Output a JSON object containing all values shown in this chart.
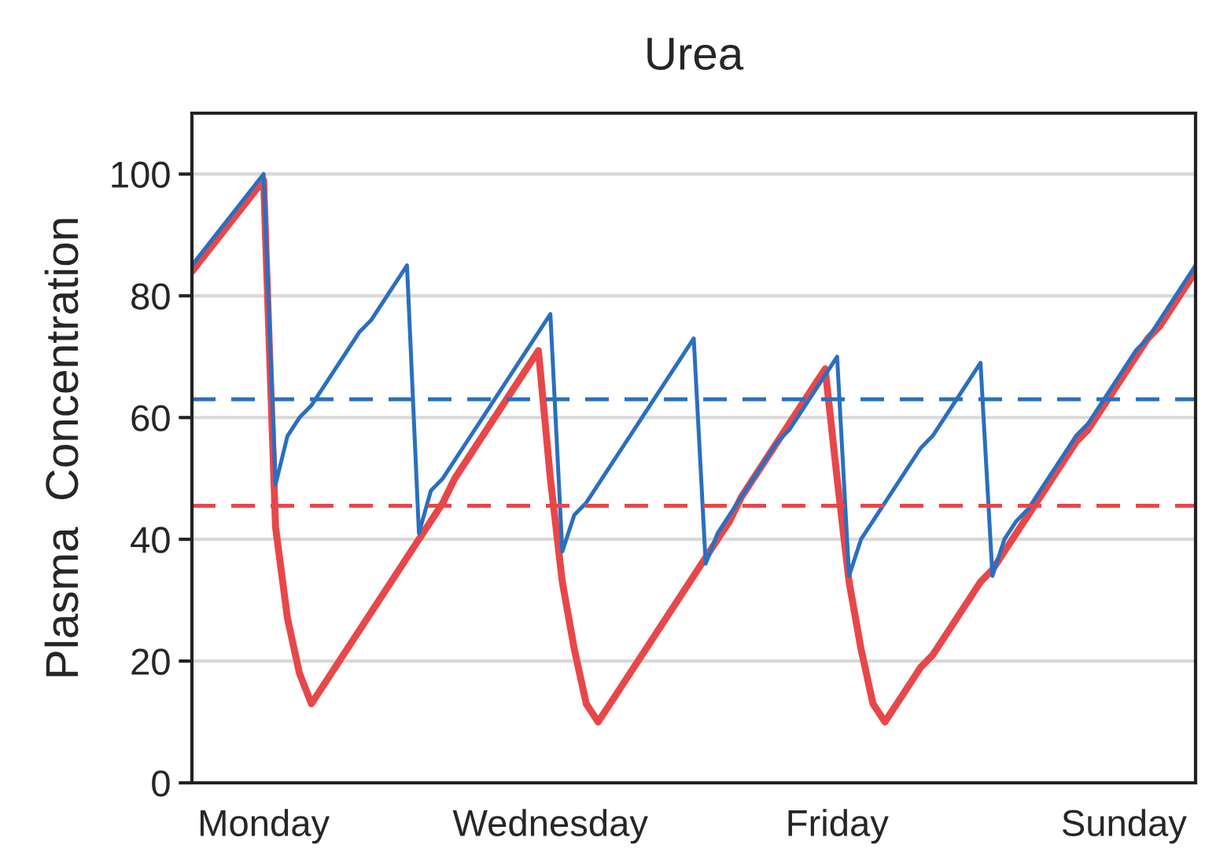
{
  "chart_data": {
    "type": "line",
    "title": "Urea",
    "ylabel": "Plasma  Concentration",
    "categories": [
      null,
      null,
      null,
      null,
      null,
      null,
      "Monday",
      null,
      null,
      null,
      null,
      null,
      null,
      null,
      null,
      null,
      null,
      null,
      null,
      null,
      null,
      null,
      null,
      null,
      null,
      null,
      null,
      null,
      null,
      null,
      "Wednesday",
      null,
      null,
      null,
      null,
      null,
      null,
      null,
      null,
      null,
      null,
      null,
      null,
      null,
      null,
      null,
      null,
      null,
      null,
      null,
      null,
      null,
      null,
      null,
      "Friday",
      null,
      null,
      null,
      null,
      null,
      null,
      null,
      null,
      null,
      null,
      null,
      null,
      null,
      null,
      null,
      null,
      null,
      null,
      null,
      null,
      null,
      null,
      null,
      "Sunday",
      null,
      null,
      null,
      null,
      null,
      null
    ],
    "ylim": [
      0,
      110
    ],
    "yticks": [
      0,
      20,
      40,
      60,
      80,
      100
    ],
    "grid": "y",
    "marker": "none",
    "line_style": "solid",
    "legend": false,
    "series": [
      {
        "color": "#e8474a",
        "values": [
          84,
          86.5,
          89,
          91.5,
          94,
          96.5,
          99,
          42,
          27,
          18,
          13,
          16,
          19,
          22,
          25,
          28,
          31,
          34,
          37,
          40,
          43,
          46,
          50,
          53,
          56,
          59,
          62,
          65,
          68,
          71,
          50,
          33,
          22,
          13,
          10,
          13,
          16,
          19,
          22,
          25,
          28,
          31,
          34,
          37,
          40,
          43,
          47,
          50,
          53,
          56,
          59,
          62,
          65,
          68,
          50,
          33,
          22,
          13,
          10,
          13,
          16,
          19,
          21,
          24,
          27,
          30,
          33,
          35,
          38,
          41,
          44,
          47,
          50,
          53,
          56,
          58,
          61,
          64,
          67,
          70,
          73,
          75,
          78,
          81,
          84
        ]
      },
      {
        "color": "#2a6fc0",
        "values": [
          85,
          87.5,
          90,
          92.5,
          95,
          97.5,
          100,
          49,
          57,
          60,
          62,
          65,
          68,
          71,
          74,
          76,
          79,
          82,
          85,
          41,
          48,
          50,
          53,
          56,
          59,
          62,
          65,
          68,
          71,
          74,
          77,
          38,
          44,
          46,
          49,
          52,
          55,
          58,
          61,
          64,
          67,
          70,
          73,
          36,
          41,
          44,
          47,
          50,
          53,
          56,
          58,
          61,
          64,
          67,
          70,
          34,
          40,
          43,
          46,
          49,
          52,
          55,
          57,
          60,
          63,
          66,
          69,
          34,
          40,
          43,
          45,
          48,
          51,
          54,
          57,
          59,
          62,
          65,
          68,
          71,
          73,
          76,
          79,
          82,
          85
        ]
      }
    ],
    "ref_lines": [
      {
        "axis": "y",
        "value": 63,
        "color": "#2a6fc0",
        "line_style": "dashed"
      },
      {
        "axis": "y",
        "value": 45.5,
        "color": "#e8474a",
        "line_style": "dashed"
      }
    ]
  }
}
